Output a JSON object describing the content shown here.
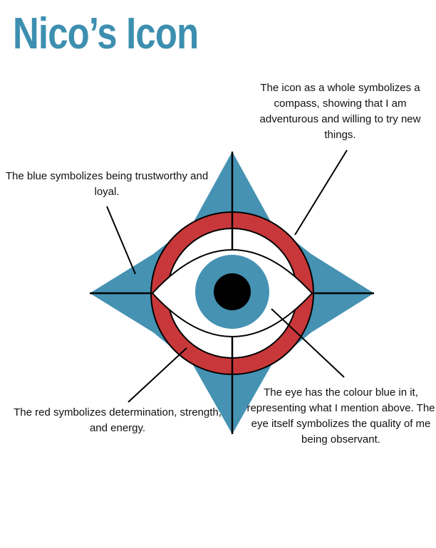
{
  "title": "Nico’s Icon",
  "colors": {
    "title": "#3d8fb0",
    "star": "#4592b3",
    "ring": "#c8383a",
    "pupil": "#000000",
    "iris": "#4592b3"
  },
  "annotations": {
    "compass": "The icon as a whole symbolizes a compass, showing that I am adventurous and willing to try new things.",
    "blue": "The blue symbolizes being trustworthy and loyal.",
    "red": "The red symbolizes determination, strength, and energy.",
    "eye": "The eye has the colour blue in it, representing what I mention above. The eye itself symbolizes the quality of me being observant."
  }
}
